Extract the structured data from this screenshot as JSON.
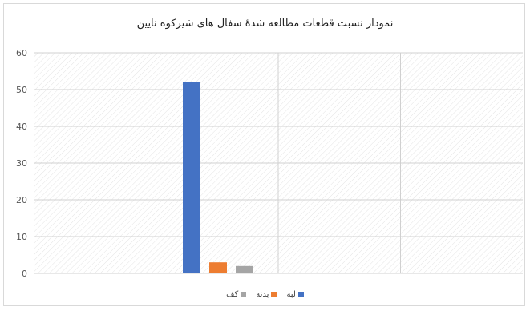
{
  "chart_data": {
    "type": "bar",
    "title": "نمودار نسبت قطعات مطالعه شدهٔ سفال های شیرکوه نایین",
    "ylim": [
      0,
      60
    ],
    "y_ticks": [
      0,
      10,
      20,
      30,
      40,
      50,
      60
    ],
    "categories": [
      "لبه",
      "بدنه",
      "کف"
    ],
    "values": [
      52,
      3,
      2
    ],
    "colors": [
      "#4472c4",
      "#ed7d31",
      "#a5a5a5"
    ],
    "grid": true,
    "legend_position": "bottom"
  }
}
